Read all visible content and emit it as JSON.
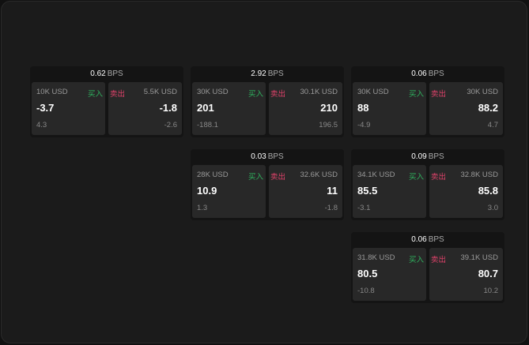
{
  "unit": "BPS",
  "buy_label": "买入",
  "sell_label": "卖出",
  "colors": {
    "buy": "#2fb35f",
    "sell": "#e0426a"
  },
  "panels": [
    {
      "bps": "0.62",
      "bid_size": "10K USD",
      "bid": "-3.7",
      "bid_change": "4.3",
      "ask_size": "5.5K USD",
      "ask": "-1.8",
      "ask_change": "-2.6"
    },
    {
      "bps": "2.92",
      "bid_size": "30K USD",
      "bid": "201",
      "bid_change": "-188.1",
      "ask_size": "30.1K USD",
      "ask": "210",
      "ask_change": "196.5"
    },
    {
      "bps": "0.06",
      "bid_size": "30K USD",
      "bid": "88",
      "bid_change": "-4.9",
      "ask_size": "30K USD",
      "ask": "88.2",
      "ask_change": "4.7"
    },
    {
      "bps": "0.03",
      "bid_size": "28K USD",
      "bid": "10.9",
      "bid_change": "1.3",
      "ask_size": "32.6K USD",
      "ask": "11",
      "ask_change": "-1.8"
    },
    {
      "bps": "0.09",
      "bid_size": "34.1K USD",
      "bid": "85.5",
      "bid_change": "-3.1",
      "ask_size": "32.8K USD",
      "ask": "85.8",
      "ask_change": "3.0"
    },
    {
      "bps": "0.06",
      "bid_size": "31.8K USD",
      "bid": "80.5",
      "bid_change": "-10.8",
      "ask_size": "39.1K USD",
      "ask": "80.7",
      "ask_change": "10.2"
    }
  ]
}
